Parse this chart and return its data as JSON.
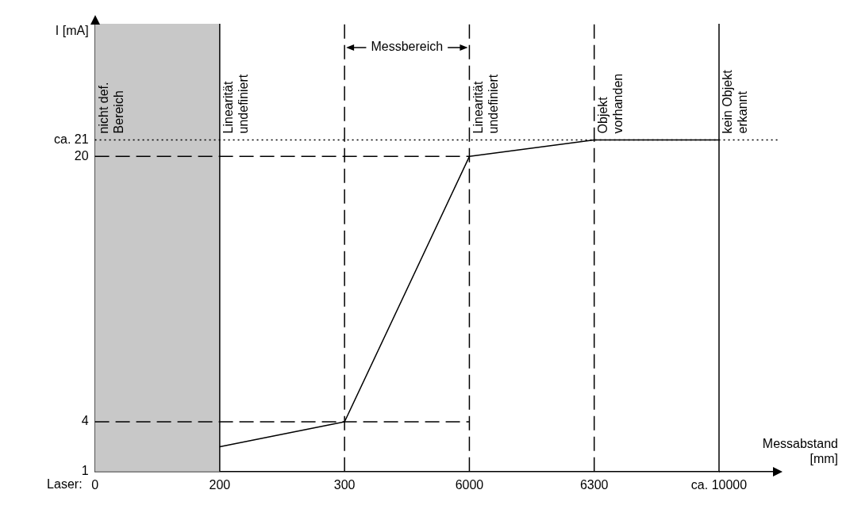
{
  "chart_data": {
    "type": "line",
    "xlabel": "Messabstand [mm]",
    "ylabel": "I [mA]",
    "categories": [
      "0",
      "200",
      "300",
      "6000",
      "6300",
      "ca. 10000"
    ],
    "series": [
      {
        "color": "#000000",
        "values": [
          null,
          2.5,
          4,
          20,
          21,
          21
        ]
      }
    ],
    "ylim": [
      1,
      28
    ],
    "yticks": [
      1,
      4,
      20,
      {
        "value": 21,
        "label": "ca. 21"
      }
    ],
    "ref_lines": [
      {
        "axis": "y",
        "value": 21,
        "line_style": "dotted"
      },
      {
        "axis": "y",
        "value": 20,
        "line_style": "dashed"
      },
      {
        "axis": "y",
        "value": 4,
        "line_style": "dashed"
      },
      {
        "axis": "x",
        "value": "200",
        "line_style": "solid",
        "label": "Linearität undefiniert"
      },
      {
        "axis": "x",
        "value": "300",
        "line_style": "dashed",
        "label": "Messbereich"
      },
      {
        "axis": "x",
        "value": "6000",
        "line_style": "dashed",
        "label": "Linearität undefiniert"
      },
      {
        "axis": "x",
        "value": "6300",
        "line_style": "dashed",
        "label": "Objekt vorhanden"
      },
      {
        "axis": "x",
        "value": "ca. 10000",
        "line_style": "solid",
        "label": "kein Objekt erkannt"
      }
    ],
    "bands": [
      {
        "axis": "x",
        "from": "0",
        "to": "200",
        "label": "nicht def. Bereich",
        "color": "#c8c8c8"
      }
    ],
    "annotations": [
      "Laser:"
    ],
    "legend": false
  }
}
